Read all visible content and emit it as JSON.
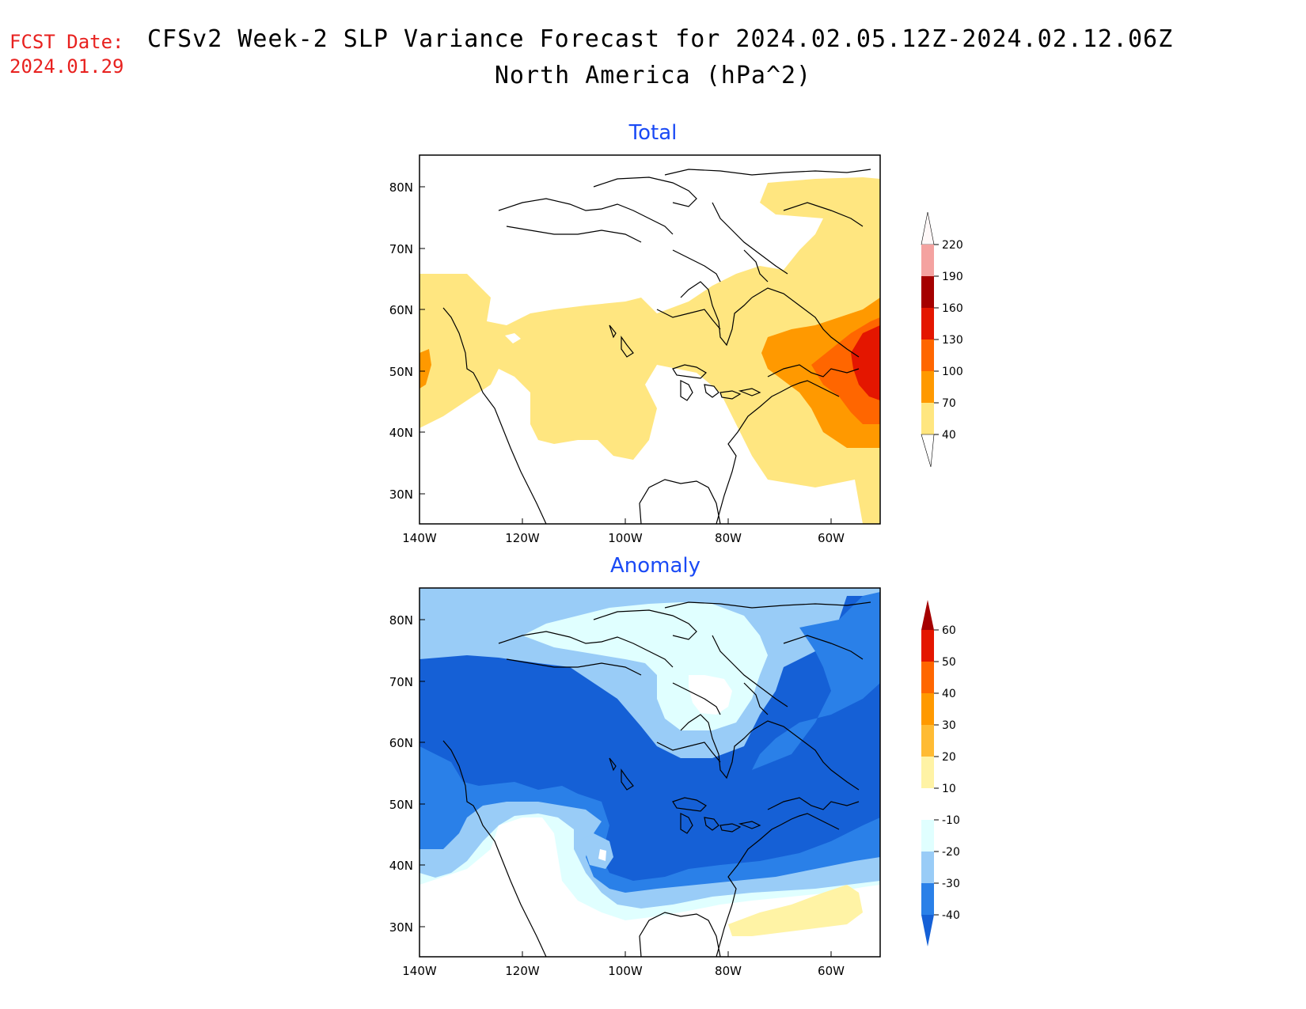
{
  "header": {
    "fcst_label": "FCST Date:",
    "fcst_date": "2024.01.29",
    "title": "CFSv2 Week-2 SLP Variance Forecast for 2024.02.05.12Z-2024.02.12.06Z",
    "subtitle": "North America (hPa^2)"
  },
  "panels": [
    {
      "title": "Total",
      "lat_labels": [
        "80N",
        "70N",
        "60N",
        "50N",
        "40N",
        "30N"
      ],
      "lon_labels": [
        "140W",
        "120W",
        "100W",
        "80W",
        "60W"
      ],
      "colorbar": {
        "labels": [
          "220",
          "190",
          "160",
          "130",
          "100",
          "70",
          "40"
        ],
        "colors": [
          "#fde0df",
          "#f4a2a0",
          "#a50000",
          "#e41600",
          "#ff6600",
          "#ff9900",
          "#ffe680"
        ]
      }
    },
    {
      "title": "Anomaly",
      "lat_labels": [
        "80N",
        "70N",
        "60N",
        "50N",
        "40N",
        "30N"
      ],
      "lon_labels": [
        "140W",
        "120W",
        "100W",
        "80W",
        "60W"
      ],
      "colorbar": {
        "labels": [
          "60",
          "50",
          "40",
          "30",
          "20",
          "10",
          "-10",
          "-20",
          "-30",
          "-40"
        ],
        "colors": [
          "#a50000",
          "#e41600",
          "#ff6600",
          "#ff9900",
          "#ffbb33",
          "#fff3a5",
          "#ffffff",
          "#e0ffff",
          "#99ccf7",
          "#2a80e8",
          "#1560d6"
        ]
      }
    }
  ],
  "colors": {
    "title_blue": "#1a4af5",
    "fcst_red": "#e8211f"
  }
}
